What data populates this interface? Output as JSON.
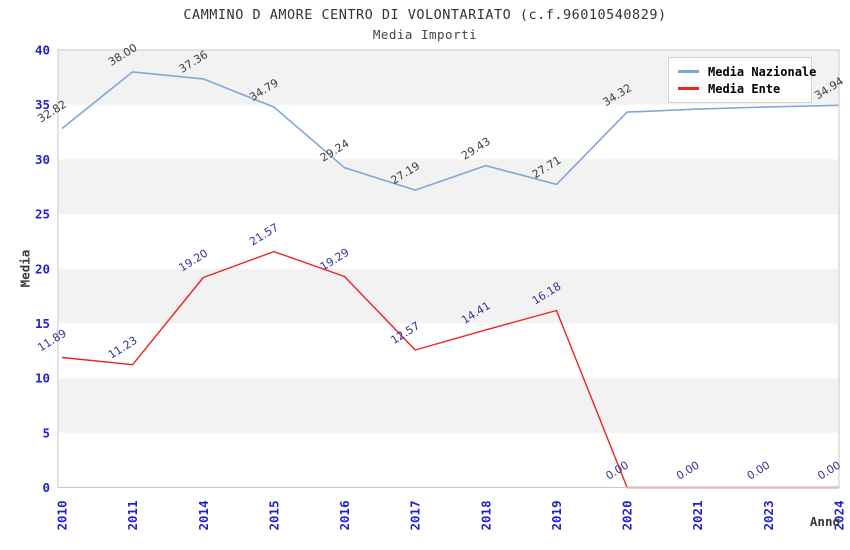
{
  "header": {
    "title": "CAMMINO D AMORE CENTRO DI VOLONTARIATO (c.f.96010540829)",
    "subtitle": "Media Importi"
  },
  "chart_data": {
    "type": "line",
    "title": "CAMMINO D AMORE CENTRO DI VOLONTARIATO (c.f.96010540829)",
    "subtitle": "Media Importi",
    "xlabel": "Anno",
    "ylabel": "Media",
    "ylim": [
      0,
      40
    ],
    "ytick_step": 5,
    "yticks": [
      0,
      5,
      10,
      15,
      20,
      25,
      30,
      35,
      40
    ],
    "categories": [
      "2010",
      "2011",
      "2014",
      "2015",
      "2016",
      "2017",
      "2018",
      "2019",
      "2020",
      "2021",
      "2023",
      "2024"
    ],
    "series": [
      {
        "name": "Media Nazionale",
        "color": "#7fa8d9",
        "label_color": "#3c3c3c",
        "values": [
          32.82,
          38.0,
          37.36,
          34.79,
          29.24,
          27.19,
          29.43,
          27.71,
          34.32,
          34.6,
          34.8,
          34.94
        ],
        "labels": [
          "32.82",
          "38.00",
          "37.36",
          "34.79",
          "29.24",
          "27.19",
          "29.43",
          "27.71",
          "34.32",
          "",
          "",
          "34.94"
        ]
      },
      {
        "name": "Media Ente",
        "color": "#ee2222",
        "label_color": "#333399",
        "values": [
          11.89,
          11.23,
          19.2,
          21.57,
          19.29,
          12.57,
          14.41,
          16.18,
          0.0,
          0.0,
          0.0,
          0.0
        ],
        "labels": [
          "11.89",
          "11.23",
          "19.20",
          "21.57",
          "19.29",
          "12.57",
          "14.41",
          "16.18",
          "0.00",
          "0.00",
          "0.00",
          "0.00"
        ]
      }
    ],
    "legend": {
      "position": "top-right",
      "entries": [
        "Media Nazionale",
        "Media Ente"
      ]
    },
    "grid": "horizontal-bands",
    "band_colors": [
      "#f2f2f2",
      "#ffffff"
    ],
    "frame_color": "#c9c9c9",
    "tick_label_color": "#2222cc"
  }
}
